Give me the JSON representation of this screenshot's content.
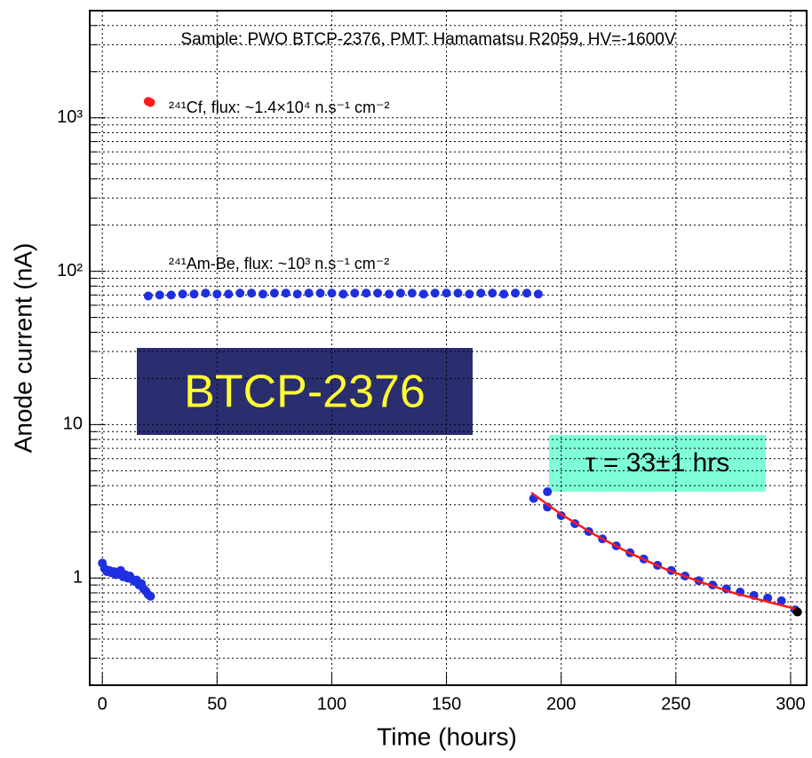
{
  "chart_data": {
    "type": "scatter",
    "title": "Sample: PWO BTCP-2376, PMT: Hamamatsu R2059, HV=-1600V",
    "x_label": "Time (hours)",
    "y_label": "Anode current (nA)",
    "annotations": [
      {
        "text": "²⁴¹Cf, flux: ~1.4×10⁴ n.s⁻¹ cm⁻²"
      },
      {
        "text": "²⁴¹Am-Be, flux: ~10³ n.s⁻¹ cm⁻²"
      },
      {
        "text": "BTCP-2376",
        "color": "#ffff33",
        "background": "#2a2d6e"
      },
      {
        "text": "τ = 33±1 hrs",
        "color": "#000000",
        "background": "#7fffd8"
      }
    ],
    "xlim": [
      -5.5,
      307
    ],
    "xticks": [
      0,
      50,
      100,
      150,
      200,
      250,
      300
    ],
    "ylim": [
      0.2,
      5000
    ],
    "log_y": true,
    "yticks": [
      1,
      10,
      {
        "value": 100,
        "label": "10²"
      },
      {
        "value": 1000,
        "label": "10³"
      }
    ],
    "yminorticks": [
      0.3,
      0.4,
      0.5,
      0.6,
      0.7,
      0.8,
      0.9,
      2,
      3,
      4,
      5,
      6,
      7,
      8,
      9,
      20,
      30,
      40,
      50,
      60,
      70,
      80,
      90,
      200,
      300,
      400,
      500,
      600,
      700,
      800,
      900,
      2000,
      3000,
      4000
    ],
    "grid": true,
    "series": [
      {
        "color": "#ff1a1a",
        "style": "points",
        "x": [
          20,
          21
        ],
        "values": [
          1280,
          1260
        ]
      },
      {
        "color": "#1f2fe0",
        "style": "points",
        "x": [
          0,
          1,
          2,
          3,
          4,
          5,
          6,
          7,
          8,
          9,
          10,
          11,
          12,
          13,
          14,
          15,
          16,
          17,
          18,
          19,
          20,
          21
        ],
        "values": [
          1.25,
          1.15,
          1.1,
          1.12,
          1.08,
          1.1,
          1.05,
          1.08,
          1.12,
          1.02,
          1.05,
          1.0,
          1.03,
          0.98,
          0.95,
          0.97,
          0.9,
          0.92,
          0.85,
          0.82,
          0.78,
          0.76
        ]
      },
      {
        "color": "#1f2fe0",
        "style": "points",
        "x": [
          20,
          25,
          30,
          35,
          40,
          45,
          50,
          55,
          60,
          65,
          70,
          75,
          80,
          85,
          90,
          95,
          100,
          105,
          110,
          115,
          120,
          125,
          130,
          135,
          140,
          145,
          150,
          155,
          160,
          165,
          170,
          175,
          180,
          185,
          190
        ],
        "values": [
          69,
          70,
          70,
          71,
          71,
          72,
          71,
          71,
          72,
          72,
          71,
          72,
          72,
          71,
          72,
          72,
          72,
          71,
          72,
          72,
          72,
          71,
          72,
          72,
          71,
          72,
          72,
          72,
          71,
          72,
          72,
          71,
          72,
          72,
          71
        ]
      },
      {
        "color": "#1f2fe0",
        "style": "points",
        "x": [
          188,
          194,
          200,
          206,
          212,
          218,
          224,
          230,
          236,
          242,
          248,
          254,
          260,
          266,
          272,
          278,
          284,
          290,
          296,
          302,
          194
        ],
        "values": [
          3.3,
          2.9,
          2.55,
          2.26,
          2.01,
          1.8,
          1.62,
          1.46,
          1.33,
          1.21,
          1.12,
          1.03,
          0.96,
          0.9,
          0.85,
          0.81,
          0.77,
          0.74,
          0.71,
          0.62,
          3.65
        ]
      },
      {
        "color": "#000000",
        "style": "points",
        "x": [
          303
        ],
        "values": [
          0.6
        ]
      },
      {
        "color": "#ff1a1a",
        "style": "line",
        "x": [
          187,
          200,
          215,
          230,
          245,
          260,
          275,
          290,
          302
        ],
        "values": [
          3.6,
          2.6,
          1.9,
          1.45,
          1.15,
          0.95,
          0.8,
          0.7,
          0.63
        ]
      }
    ]
  }
}
